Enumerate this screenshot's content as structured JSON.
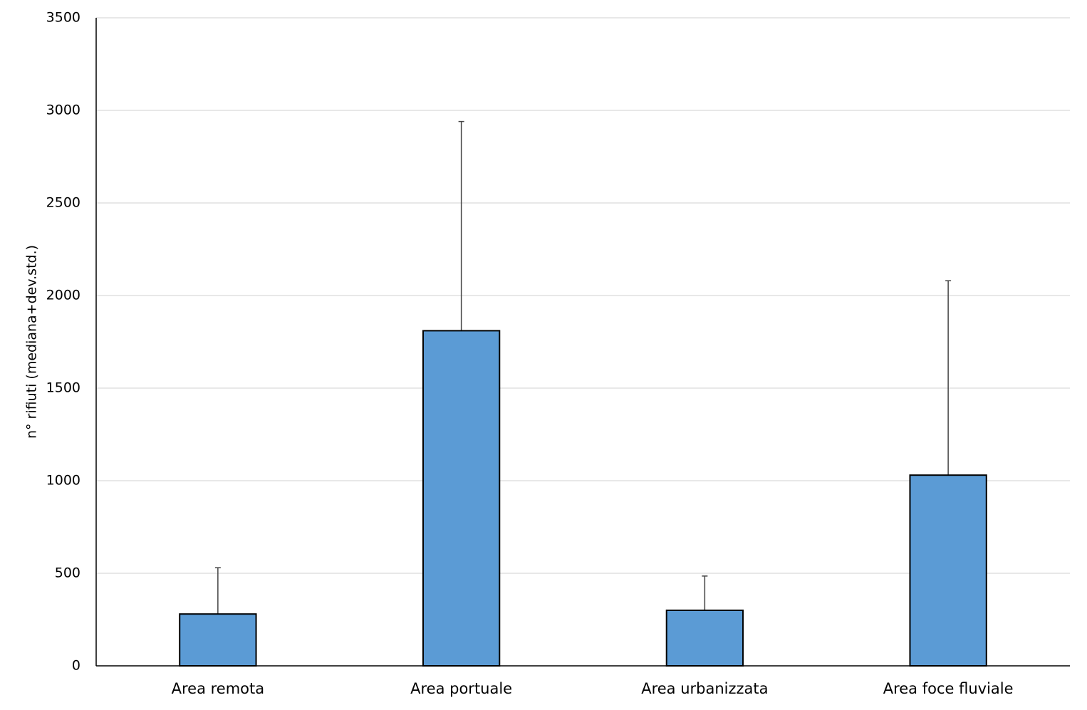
{
  "chart_data": {
    "type": "bar",
    "y_label": "n° rifiuti (mediana+dev.std.)",
    "categories": [
      "Area remota",
      "Area portuale",
      "Area urbanizzata",
      "Area foce fluviale"
    ],
    "values": [
      280,
      1810,
      300,
      1030
    ],
    "errors": [
      250,
      1130,
      185,
      1050
    ],
    "color": "#5b9bd5",
    "ylim": [
      0,
      3500
    ],
    "yticks": [
      0,
      500,
      1000,
      1500,
      2000,
      2500,
      3000,
      3500
    ],
    "grid": true
  }
}
